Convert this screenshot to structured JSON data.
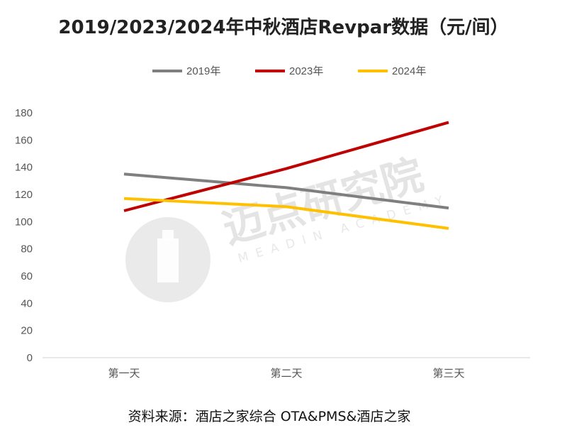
{
  "title": "2019/2023/2024年中秋酒店Revpar数据（元/间）",
  "source": "资料来源：酒店之家综合 OTA&PMS&酒店之家",
  "watermark": {
    "text": "迈点研究院",
    "subtext": "MEADIN ACADEMY"
  },
  "chart_data": {
    "type": "line",
    "title": "2019/2023/2024年中秋酒店Revpar数据（元/间）",
    "xlabel": "",
    "ylabel": "",
    "categories": [
      "第一天",
      "第二天",
      "第三天"
    ],
    "ylim": [
      0,
      180
    ],
    "yticks": [
      0,
      20,
      40,
      60,
      80,
      100,
      120,
      140,
      160,
      180
    ],
    "grid": false,
    "legend": "top",
    "series": [
      {
        "name": "2019年",
        "color": "#7f7f7f",
        "values": [
          135,
          125,
          110
        ]
      },
      {
        "name": "2023年",
        "color": "#c00000",
        "values": [
          108,
          139,
          173
        ]
      },
      {
        "name": "2024年",
        "color": "#ffc000",
        "values": [
          117,
          111,
          95
        ]
      }
    ]
  }
}
